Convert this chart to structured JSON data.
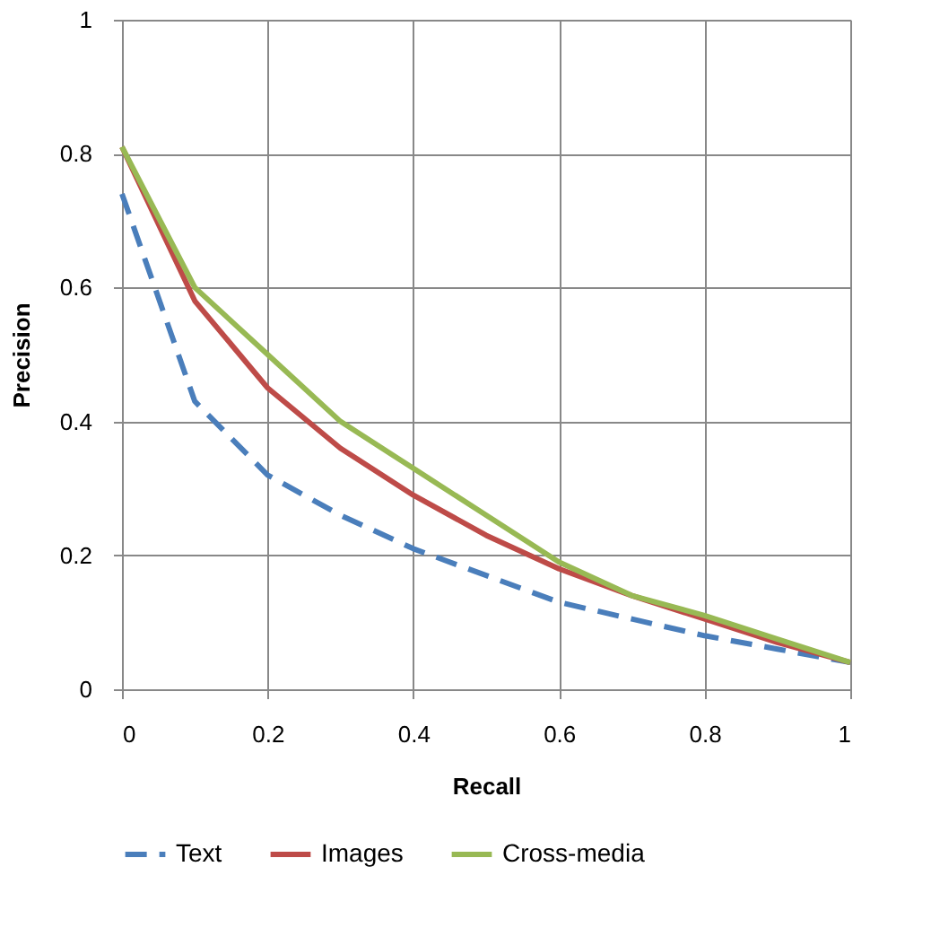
{
  "chart_data": {
    "type": "line",
    "xlabel": "Recall",
    "ylabel": "Precision",
    "x": [
      0,
      0.1,
      0.2,
      0.3,
      0.4,
      0.5,
      0.6,
      0.7,
      0.8,
      0.9,
      1
    ],
    "series": [
      {
        "name": "Text",
        "color": "#4a7ebb",
        "line_style": "dashed",
        "values": [
          0.74,
          0.43,
          0.32,
          0.26,
          0.21,
          0.17,
          0.13,
          0.105,
          0.08,
          0.06,
          0.04
        ]
      },
      {
        "name": "Images",
        "color": "#be4b48",
        "line_style": "solid",
        "values": [
          0.81,
          0.58,
          0.45,
          0.36,
          0.29,
          0.23,
          0.18,
          0.14,
          0.105,
          0.07,
          0.04
        ]
      },
      {
        "name": "Cross-media",
        "color": "#98b954",
        "line_style": "solid",
        "values": [
          0.81,
          0.6,
          0.5,
          0.4,
          0.33,
          0.26,
          0.19,
          0.14,
          0.11,
          0.075,
          0.04
        ]
      }
    ],
    "xlim": [
      0,
      1
    ],
    "ylim": [
      0,
      1
    ],
    "xticks": [
      0,
      0.2,
      0.4,
      0.6,
      0.8,
      1
    ],
    "yticks": [
      0,
      0.2,
      0.4,
      0.6,
      0.8,
      1
    ],
    "grid": true,
    "legend": "bottom",
    "marker": "none"
  }
}
